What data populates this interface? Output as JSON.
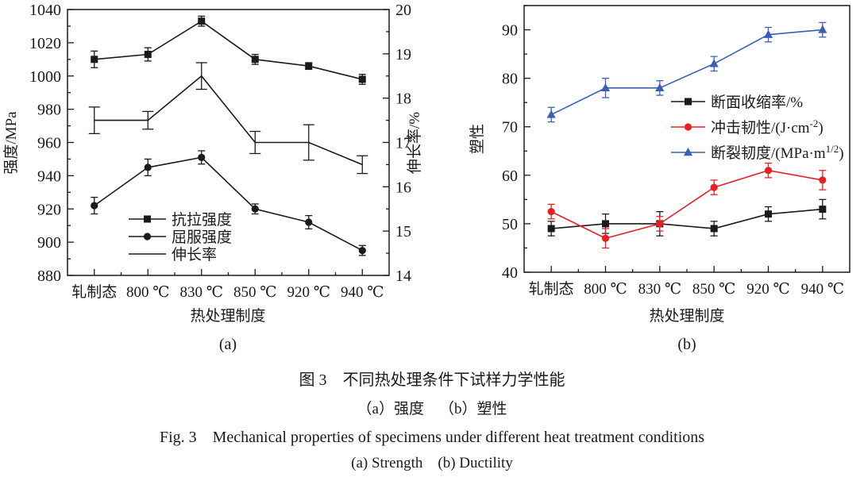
{
  "page": {
    "background": "#ffffff"
  },
  "colors": {
    "black": "#1a1a1a",
    "red": "#e82025",
    "blue": "#3b5fb4"
  },
  "captions": {
    "zh_title": "图 3 不同热处理条件下试样力学性能",
    "zh_sub": "（a）强度 （b）塑性",
    "en_title": "Fig. 3 Mechanical properties of specimens under different heat treatment conditions",
    "en_sub": "(a) Strength (b) Ductility"
  },
  "chart_data": [
    {
      "id": "a",
      "type": "line",
      "sublabel": "(a)",
      "xlabel": "热处理制度",
      "categories": [
        "轧制态",
        "800 ℃",
        "830 ℃",
        "850 ℃",
        "920 ℃",
        "940 ℃"
      ],
      "grid": false,
      "legend_position": "inside-lower-middle",
      "axes": {
        "left": {
          "label": "强度/MPa",
          "min": 880,
          "max": 1040,
          "major_ticks": [
            880,
            900,
            920,
            940,
            960,
            980,
            1000,
            1020,
            1040
          ],
          "minor_step": 10
        },
        "right": {
          "label": "伸长率/%",
          "min": 14,
          "max": 20,
          "major_ticks": [
            14,
            15,
            16,
            17,
            18,
            19,
            20
          ],
          "minor_step": 0.5
        }
      },
      "series": [
        {
          "name": "抗拉强度",
          "legend": {
            "pre": "抗拉强度",
            "sup": "",
            "post": ""
          },
          "axis": "left",
          "marker": "square",
          "color": "#1a1a1a",
          "values": [
            1010,
            1013,
            1033,
            1010,
            1006,
            998
          ],
          "errors": [
            5,
            4,
            3,
            3,
            2,
            3
          ]
        },
        {
          "name": "屈服强度",
          "legend": {
            "pre": "屈服强度",
            "sup": "",
            "post": ""
          },
          "axis": "left",
          "marker": "circle",
          "color": "#1a1a1a",
          "values": [
            922,
            945,
            951,
            920,
            912,
            895
          ],
          "errors": [
            5,
            5,
            4,
            3,
            4,
            3
          ]
        },
        {
          "name": "伸长率",
          "legend": {
            "pre": "伸长率",
            "sup": "",
            "post": ""
          },
          "axis": "right",
          "marker": "none",
          "color": "#1a1a1a",
          "cap_half": 7,
          "values": [
            17.5,
            17.5,
            18.5,
            17.0,
            17.0,
            16.5
          ],
          "errors": [
            0.3,
            0.2,
            0.3,
            0.25,
            0.4,
            0.2
          ]
        }
      ]
    },
    {
      "id": "b",
      "type": "line",
      "sublabel": "(b)",
      "xlabel": "热处理制度",
      "categories": [
        "轧制态",
        "800 ℃",
        "830 ℃",
        "850 ℃",
        "920 ℃",
        "940 ℃"
      ],
      "grid": false,
      "legend_position": "inside-middle-right",
      "axes": {
        "left": {
          "label": "塑性",
          "min": 40,
          "max": 95,
          "major_ticks": [
            40,
            50,
            60,
            70,
            80,
            90
          ],
          "minor_step": 5
        }
      },
      "series": [
        {
          "name": "断面收缩率/%",
          "legend": {
            "pre": "断面收缩率/%",
            "sup": "",
            "post": ""
          },
          "axis": "left",
          "marker": "square",
          "color": "#1a1a1a",
          "values": [
            49,
            50,
            50,
            49,
            52,
            53
          ],
          "errors": [
            1.5,
            2,
            2.5,
            1.5,
            1.5,
            2
          ]
        },
        {
          "name": "冲击韧性/(J·cm-2)",
          "legend": {
            "pre": "冲击韧性/(J·cm",
            "sup": "-2",
            "post": ")"
          },
          "axis": "left",
          "marker": "circle",
          "color": "#e82025",
          "values": [
            52.5,
            47,
            50,
            57.5,
            61,
            59
          ],
          "errors": [
            1.5,
            2,
            1.5,
            1.5,
            1.5,
            2
          ]
        },
        {
          "name": "断裂韧度/(MPa·m1/2)",
          "legend": {
            "pre": "断裂韧度/(MPa·m",
            "sup": "1/2",
            "post": ")"
          },
          "axis": "left",
          "marker": "triangle",
          "color": "#3b5fb4",
          "values": [
            72.5,
            78,
            78,
            83,
            89,
            90
          ],
          "errors": [
            1.5,
            2,
            1.5,
            1.5,
            1.5,
            1.5
          ]
        }
      ]
    }
  ]
}
